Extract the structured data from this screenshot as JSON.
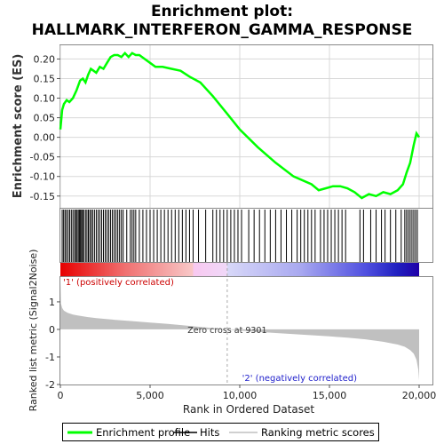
{
  "chart_data": {
    "type": "line",
    "title_line1": "Enrichment plot:",
    "title_line2": "HALLMARK_INTERFERON_GAMMA_RESPONSE",
    "es_panel": {
      "ylabel": "Enrichment score (ES)",
      "ylim": [
        -0.18,
        0.235
      ],
      "yticks": [
        "0.20",
        "0.15",
        "0.10",
        "0.05",
        "0.00",
        "-0.05",
        "-0.10",
        "-0.15"
      ],
      "ytick_values": [
        0.2,
        0.15,
        0.1,
        0.05,
        0.0,
        -0.05,
        -0.1,
        -0.15
      ],
      "grid": true,
      "series": [
        {
          "name": "Enrichment profile",
          "color": "#00ff00",
          "x": [
            0,
            100,
            200,
            350,
            500,
            700,
            900,
            1100,
            1250,
            1400,
            1550,
            1700,
            1850,
            2000,
            2200,
            2400,
            2600,
            2800,
            3000,
            3200,
            3400,
            3600,
            3800,
            4000,
            4200,
            4400,
            4700,
            5000,
            5300,
            5700,
            6200,
            6700,
            7200,
            7800,
            8500,
            9301,
            10000,
            11000,
            12000,
            13000,
            14000,
            14400,
            14800,
            15200,
            15600,
            16000,
            16400,
            16800,
            17200,
            17600,
            18000,
            18400,
            18800,
            19100,
            19300,
            19500,
            19700,
            19850,
            20000
          ],
          "y": [
            0.02,
            0.07,
            0.085,
            0.095,
            0.09,
            0.1,
            0.12,
            0.145,
            0.15,
            0.14,
            0.16,
            0.175,
            0.17,
            0.165,
            0.18,
            0.175,
            0.19,
            0.205,
            0.21,
            0.21,
            0.205,
            0.215,
            0.205,
            0.215,
            0.21,
            0.21,
            0.2,
            0.19,
            0.18,
            0.18,
            0.175,
            0.17,
            0.155,
            0.14,
            0.105,
            0.06,
            0.02,
            -0.025,
            -0.065,
            -0.1,
            -0.12,
            -0.135,
            -0.13,
            -0.125,
            -0.125,
            -0.13,
            -0.14,
            -0.155,
            -0.145,
            -0.15,
            -0.14,
            -0.145,
            -0.135,
            -0.12,
            -0.09,
            -0.065,
            -0.02,
            0.01,
            0.0
          ]
        }
      ]
    },
    "hits_panel": {
      "legend_label": "Hits",
      "hit_positions": [
        100,
        180,
        260,
        340,
        430,
        520,
        610,
        700,
        790,
        860,
        930,
        1000,
        1060,
        1120,
        1180,
        1240,
        1300,
        1400,
        1480,
        1560,
        1640,
        1720,
        1800,
        1900,
        2000,
        2100,
        2200,
        2300,
        2400,
        2500,
        2600,
        2700,
        2800,
        2900,
        3000,
        3100,
        3200,
        3300,
        3400,
        3500,
        3700,
        3900,
        4000,
        4100,
        4200,
        4400,
        4600,
        4800,
        5000,
        5200,
        5400,
        5600,
        5800,
        6000,
        6200,
        6400,
        6600,
        6800,
        7000,
        7200,
        7400,
        7700,
        8100,
        8500,
        8700,
        8900,
        9100,
        9300,
        9500,
        9700,
        9900,
        10100,
        10500,
        10800,
        11100,
        11400,
        11700,
        12000,
        12300,
        12600,
        12900,
        13200,
        13400,
        13600,
        13800,
        14000,
        14200,
        14500,
        14700,
        14900,
        15100,
        15300,
        15500,
        15700,
        15900,
        16700,
        16900,
        17300,
        17600,
        17900,
        18100,
        18400,
        18700,
        19000,
        19200,
        19300,
        19400,
        19500,
        19600,
        19700,
        19800,
        19900
      ]
    },
    "rank_panel": {
      "ylabel": "Ranked list metric (Signal2Noise)",
      "ylim": [
        -2,
        1.9
      ],
      "yticks": [
        "1",
        "0",
        "-1",
        "-2"
      ],
      "ytick_values": [
        1,
        0,
        -1,
        -2
      ],
      "legend_label": "Ranking metric scores",
      "zero_cross_label": "Zero cross at 9301",
      "zero_cross": 9301,
      "pos_label": "'1' (positively correlated)",
      "neg_label": "'2' (negatively correlated)",
      "metric_x": [
        0,
        30,
        100,
        200,
        400,
        700,
        1000,
        1500,
        2000,
        3000,
        4000,
        5000,
        6000,
        7000,
        8000,
        9301,
        10000,
        11000,
        12000,
        13000,
        14000,
        15000,
        16000,
        17000,
        18000,
        18800,
        19200,
        19500,
        19700,
        19850,
        19950,
        20000
      ],
      "metric_y": [
        1.75,
        0.95,
        0.78,
        0.68,
        0.6,
        0.54,
        0.5,
        0.45,
        0.41,
        0.35,
        0.3,
        0.25,
        0.2,
        0.14,
        0.08,
        0.0,
        -0.04,
        -0.09,
        -0.13,
        -0.17,
        -0.21,
        -0.25,
        -0.3,
        -0.36,
        -0.45,
        -0.55,
        -0.63,
        -0.75,
        -0.88,
        -1.1,
        -1.45,
        -1.85
      ]
    },
    "xaxis": {
      "xlabel": "Rank in Ordered Dataset",
      "xlim": [
        0,
        20000
      ],
      "xticks": [
        "0",
        "5,000",
        "10,000",
        "15,000",
        "20,000"
      ],
      "xtick_values": [
        0,
        5000,
        10000,
        15000,
        20000
      ]
    },
    "legend": {
      "placement": "bottom",
      "items": [
        "Enrichment profile",
        "Hits",
        "Ranking metric scores"
      ]
    },
    "colors": {
      "profile": "#00ff00",
      "hit": "#000000",
      "metric": "#c0c0c0",
      "pos_text": "#cc0000",
      "neg_text": "#2222cc",
      "grid": "#d8d8d8"
    }
  }
}
